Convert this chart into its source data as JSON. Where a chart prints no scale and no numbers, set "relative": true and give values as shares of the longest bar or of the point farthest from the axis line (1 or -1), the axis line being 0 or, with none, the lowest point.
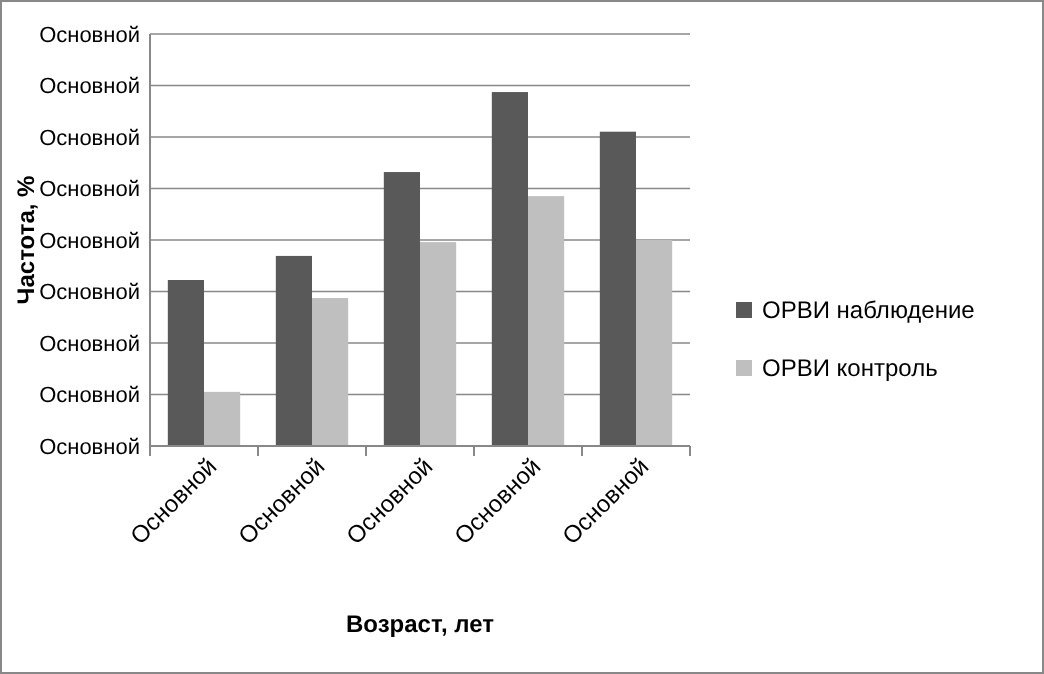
{
  "chart_data": {
    "type": "bar",
    "relative": true,
    "xlabel": "Возраст, лет",
    "ylabel": "Частота, %",
    "categories": [
      "Основной",
      "Основной",
      "Основной",
      "Основной",
      "Основной"
    ],
    "ylim": [
      0,
      1.164
    ],
    "annotations": [
      "Основной",
      "Основной",
      "Основной",
      "Основной",
      "Основной",
      "Основной",
      "Основной",
      "Основной",
      "Основной"
    ],
    "series": [
      {
        "name": "ОРВИ наблюдение",
        "color": "#595959",
        "values": [
          0.469,
          0.537,
          0.774,
          1,
          0.888
        ]
      },
      {
        "name": "ОРВИ контроль",
        "color": "#bfbfbf",
        "values": [
          0.153,
          0.418,
          0.576,
          0.706,
          0.582
        ]
      }
    ],
    "grid": "y",
    "legend": "right"
  }
}
